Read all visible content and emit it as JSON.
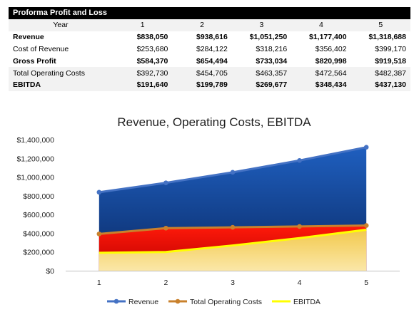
{
  "table": {
    "title": "Proforma Profit and Loss",
    "header": [
      "Year",
      "1",
      "2",
      "3",
      "4",
      "5"
    ],
    "rows": [
      {
        "label": "Revenue",
        "values": [
          "$838,050",
          "$938,616",
          "$1,051,250",
          "$1,177,400",
          "$1,318,688"
        ],
        "bold": true,
        "shaded": false
      },
      {
        "label": "Cost of Revenue",
        "values": [
          "$253,680",
          "$284,122",
          "$318,216",
          "$356,402",
          "$399,170"
        ],
        "bold": false,
        "shaded": false
      },
      {
        "label": "Gross Profit",
        "values": [
          "$584,370",
          "$654,494",
          "$733,034",
          "$820,998",
          "$919,518"
        ],
        "bold": true,
        "shaded": false
      },
      {
        "label": "Total Operating Costs",
        "values": [
          "$392,730",
          "$454,705",
          "$463,357",
          "$472,564",
          "$482,387"
        ],
        "bold": false,
        "shaded": true
      },
      {
        "label": "EBITDA",
        "values": [
          "$191,640",
          "$199,789",
          "$269,677",
          "$348,434",
          "$437,130"
        ],
        "bold": true,
        "shaded": true
      }
    ]
  },
  "chart_data": {
    "type": "area",
    "title": "Revenue, Operating Costs, EBITDA",
    "categories": [
      "1",
      "2",
      "3",
      "4",
      "5"
    ],
    "ylim": [
      0,
      1400000
    ],
    "yticks": [
      0,
      200000,
      400000,
      600000,
      800000,
      1000000,
      1200000,
      1400000
    ],
    "ytick_labels": [
      "$0",
      "$200,000",
      "$400,000",
      "$600,000",
      "$800,000",
      "$1,000,000",
      "$1,200,000",
      "$1,400,000"
    ],
    "grid": false,
    "legend_position": "bottom",
    "series": [
      {
        "name": "Revenue",
        "values": [
          838050,
          938616,
          1051250,
          1177400,
          1318688
        ],
        "line_color": "#4472c4",
        "fill_top": "#1f5fbf",
        "fill_bottom": "#0a2a66",
        "markers": true
      },
      {
        "name": "Total Operating Costs",
        "values": [
          392730,
          454705,
          463357,
          472564,
          482387
        ],
        "line_color": "#c9812c",
        "fill_top": "#ff1a0a",
        "fill_bottom": "#c00000",
        "markers": true
      },
      {
        "name": "EBITDA",
        "values": [
          191640,
          199789,
          269677,
          348434,
          437130
        ],
        "line_color": "#ffff00",
        "fill_top": "#f2c94c",
        "fill_bottom": "#fbe7a8",
        "markers": false
      }
    ]
  }
}
